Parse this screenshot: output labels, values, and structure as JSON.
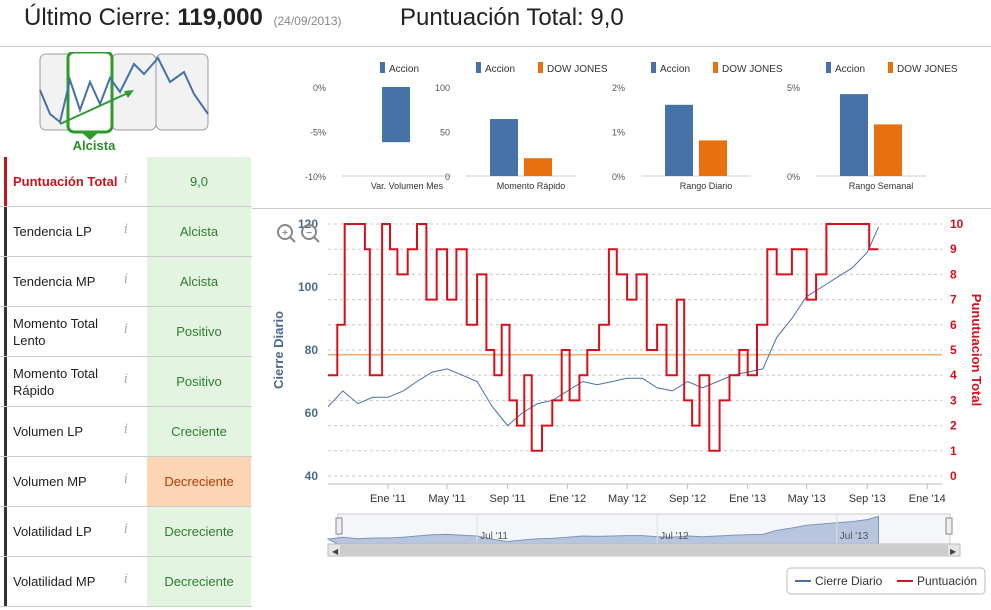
{
  "header": {
    "last_close_label": "Último Cierre:",
    "last_close_value": "119,000",
    "last_close_date": "(24/09/2013)",
    "total_score_label": "Puntuación Total:",
    "total_score_value": "9,0"
  },
  "trend": {
    "label": "Alcista"
  },
  "scores": [
    {
      "label": "Puntuación Total",
      "value": "9,0",
      "status": "good"
    },
    {
      "label": "Tendencia LP",
      "value": "Alcista",
      "status": "good"
    },
    {
      "label": "Tendencia MP",
      "value": "Alcista",
      "status": "good"
    },
    {
      "label": "Momento Total Lento",
      "value": "Positivo",
      "status": "good"
    },
    {
      "label": "Momento Total Rápido",
      "value": "Positivo",
      "status": "good"
    },
    {
      "label": "Volumen LP",
      "value": "Creciente",
      "status": "good"
    },
    {
      "label": "Volumen MP",
      "value": "Decreciente",
      "status": "bad"
    },
    {
      "label": "Volatilidad LP",
      "value": "Decreciente",
      "status": "good"
    },
    {
      "label": "Volatilidad MP",
      "value": "Decreciente",
      "status": "good"
    }
  ],
  "info_icon": "i",
  "colors": {
    "accion": "#4572a7",
    "dowjones": "#e8700e",
    "cierre": "#4572a7",
    "puntuacion": "#d8101c",
    "threshold": "#f5a96b",
    "good_bg": "#e3f4e1",
    "bad_bg": "#fcd5b5"
  },
  "chart_data": [
    {
      "type": "bar",
      "categories": [
        "Var. Volumen Mes"
      ],
      "series": [
        {
          "name": "Accion",
          "values": [
            -6.2
          ]
        }
      ],
      "ylim": [
        -10,
        0
      ],
      "yticks": [
        "0%",
        "-5%",
        "-10%"
      ]
    },
    {
      "type": "bar",
      "categories": [
        "Momento Rápido"
      ],
      "series": [
        {
          "name": "Accion",
          "values": [
            64
          ]
        },
        {
          "name": "DOW JONES",
          "values": [
            20
          ]
        }
      ],
      "ylim": [
        0,
        100
      ],
      "yticks": [
        "100",
        "50",
        "0"
      ]
    },
    {
      "type": "bar",
      "categories": [
        "Rango Diario"
      ],
      "series": [
        {
          "name": "Accion",
          "values": [
            1.6
          ]
        },
        {
          "name": "DOW JONES",
          "values": [
            0.8
          ]
        }
      ],
      "ylim": [
        0,
        2
      ],
      "yticks": [
        "2%",
        "1%",
        "0%"
      ]
    },
    {
      "type": "bar",
      "categories": [
        "Rango Semanal"
      ],
      "series": [
        {
          "name": "Accion",
          "values": [
            4.6
          ]
        },
        {
          "name": "DOW JONES",
          "values": [
            2.9
          ]
        }
      ],
      "ylim": [
        0,
        5
      ],
      "yticks": [
        "5%",
        "0%"
      ]
    },
    {
      "type": "line",
      "ylabel": "Cierre Diario",
      "y2label": "Punutuacion Total",
      "ylim": [
        40,
        120
      ],
      "y2lim": [
        0,
        10
      ],
      "yticks": [
        "40",
        "60",
        "80",
        "100",
        "120"
      ],
      "y2ticks": [
        "0",
        "1",
        "2",
        "3",
        "4",
        "5",
        "6",
        "7",
        "8",
        "9",
        "10"
      ],
      "xticks": [
        "Ene '11",
        "May '11",
        "Sep '11",
        "Ene '12",
        "May '12",
        "Sep '12",
        "Ene '13",
        "May '13",
        "Sep '13",
        "Ene '14"
      ],
      "xlim": [
        "2010-09-01",
        "2014-01-31"
      ],
      "threshold": 78.5,
      "legend": {
        "position": "bottom-right"
      },
      "series": [
        {
          "name": "Cierre Diario",
          "axis": "left",
          "x": [
            "2010-09-01",
            "2010-10-01",
            "2010-11-01",
            "2010-12-01",
            "2011-01-01",
            "2011-02-01",
            "2011-03-01",
            "2011-04-01",
            "2011-05-01",
            "2011-06-01",
            "2011-07-01",
            "2011-08-01",
            "2011-09-01",
            "2011-10-01",
            "2011-11-01",
            "2011-12-01",
            "2012-01-01",
            "2012-02-01",
            "2012-03-01",
            "2012-04-01",
            "2012-05-01",
            "2012-06-01",
            "2012-07-01",
            "2012-08-01",
            "2012-09-01",
            "2012-10-01",
            "2012-11-01",
            "2012-12-01",
            "2013-01-01",
            "2013-02-01",
            "2013-03-01",
            "2013-04-01",
            "2013-05-01",
            "2013-06-01",
            "2013-07-01",
            "2013-08-01",
            "2013-09-01",
            "2013-09-24"
          ],
          "values": [
            62,
            67,
            63,
            65,
            65,
            67,
            70,
            73,
            74,
            72,
            70,
            62,
            56,
            60,
            63,
            64,
            67,
            70,
            69,
            70,
            71,
            71,
            68,
            67,
            70,
            68,
            70,
            72,
            73,
            74,
            84,
            90,
            97,
            100,
            103,
            106,
            111,
            119
          ]
        },
        {
          "name": "Puntuación",
          "axis": "right",
          "x": [
            "2010-09-01",
            "2010-09-20",
            "2010-10-05",
            "2010-11-15",
            "2010-11-25",
            "2010-12-20",
            "2011-01-05",
            "2011-01-20",
            "2011-02-10",
            "2011-03-01",
            "2011-03-20",
            "2011-04-10",
            "2011-05-01",
            "2011-05-20",
            "2011-06-10",
            "2011-07-01",
            "2011-07-20",
            "2011-08-05",
            "2011-08-20",
            "2011-09-05",
            "2011-09-20",
            "2011-10-05",
            "2011-10-20",
            "2011-11-10",
            "2011-12-01",
            "2011-12-20",
            "2012-01-05",
            "2012-01-25",
            "2012-02-10",
            "2012-03-05",
            "2012-03-25",
            "2012-04-10",
            "2012-05-01",
            "2012-05-20",
            "2012-06-10",
            "2012-07-01",
            "2012-07-20",
            "2012-08-10",
            "2012-08-25",
            "2012-09-10",
            "2012-09-25",
            "2012-10-15",
            "2012-11-05",
            "2012-11-25",
            "2012-12-15",
            "2013-01-01",
            "2013-01-20",
            "2013-02-10",
            "2013-03-01",
            "2013-04-01",
            "2013-05-01",
            "2013-05-20",
            "2013-06-10",
            "2013-07-01",
            "2013-08-01",
            "2013-08-20",
            "2013-09-05",
            "2013-09-24"
          ],
          "values": [
            4,
            6,
            10,
            9,
            4,
            10,
            9,
            8,
            9,
            10,
            7,
            9,
            7,
            9,
            6,
            8,
            5,
            4,
            6,
            3,
            2,
            4,
            1,
            2,
            3,
            5,
            3,
            4,
            5,
            6,
            9,
            8,
            7,
            8,
            5,
            6,
            4,
            7,
            3,
            2,
            4,
            1,
            3,
            4,
            5,
            4,
            6,
            9,
            8,
            9,
            7,
            8,
            10,
            10,
            10,
            10,
            9,
            9
          ]
        }
      ]
    }
  ]
}
